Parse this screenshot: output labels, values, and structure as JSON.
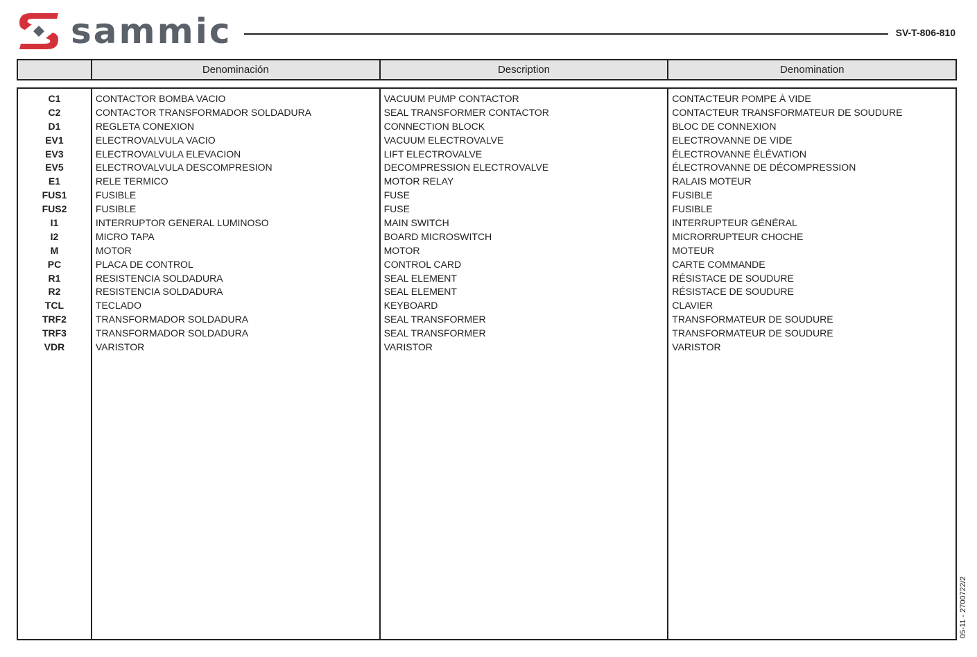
{
  "header": {
    "brand": "sammic",
    "doc_code": "SV-T-806-810",
    "brand_colors": {
      "red": "#d5313a",
      "gray": "#5a6169"
    }
  },
  "table": {
    "columns": [
      "",
      "Denominación",
      "Description",
      "Denomination"
    ],
    "rows": [
      [
        "C1",
        "CONTACTOR BOMBA VACIO",
        "VACUUM PUMP CONTACTOR",
        "CONTACTEUR POMPE À VIDE"
      ],
      [
        "C2",
        "CONTACTOR TRANSFORMADOR SOLDADURA",
        "SEAL TRANSFORMER CONTACTOR",
        "CONTACTEUR TRANSFORMATEUR DE SOUDURE"
      ],
      [
        "D1",
        "REGLETA CONEXION",
        "CONNECTION BLOCK",
        "BLOC DE CONNEXION"
      ],
      [
        "EV1",
        "ELECTROVALVULA VACIO",
        "VACUUM ELECTROVALVE",
        "ELECTROVANNE DE VIDE"
      ],
      [
        "EV3",
        "ELECTROVALVULA ELEVACION",
        "LIFT ELECTROVALVE",
        "ÉLECTROVANNE ÉLÉVATION"
      ],
      [
        "EV5",
        "ELECTROVALVULA DESCOMPRESION",
        "DECOMPRESSION ELECTROVALVE",
        "ÉLECTROVANNE DE DÉCOMPRESSION"
      ],
      [
        "E1",
        "RELE TERMICO",
        "MOTOR RELAY",
        "RALAIS MOTEUR"
      ],
      [
        "FUS1",
        "FUSIBLE",
        "FUSE",
        "FUSIBLE"
      ],
      [
        "FUS2",
        "FUSIBLE",
        "FUSE",
        "FUSIBLE"
      ],
      [
        "I1",
        "INTERRUPTOR GENERAL LUMINOSO",
        "MAIN SWITCH",
        "INTERRUPTEUR GÉNÉRAL"
      ],
      [
        "I2",
        "MICRO TAPA",
        "BOARD MICROSWITCH",
        "MICRORRUPTEUR CHOCHE"
      ],
      [
        "M",
        "MOTOR",
        "MOTOR",
        "MOTEUR"
      ],
      [
        "PC",
        "PLACA DE CONTROL",
        "CONTROL CARD",
        "CARTE COMMANDE"
      ],
      [
        "R1",
        "RESISTENCIA SOLDADURA",
        "SEAL ELEMENT",
        "RÉSISTACE DE SOUDURE"
      ],
      [
        "R2",
        "RESISTENCIA SOLDADURA",
        "SEAL ELEMENT",
        "RÉSISTACE DE SOUDURE"
      ],
      [
        "TCL",
        "TECLADO",
        "KEYBOARD",
        "CLAVIER"
      ],
      [
        "TRF2",
        "TRANSFORMADOR SOLDADURA",
        "SEAL TRANSFORMER",
        "TRANSFORMATEUR DE SOUDURE"
      ],
      [
        "TRF3",
        "TRANSFORMADOR SOLDADURA",
        "SEAL TRANSFORMER",
        "TRANSFORMATEUR DE SOUDURE"
      ],
      [
        "VDR",
        "VARISTOR",
        "VARISTOR",
        "VARISTOR"
      ]
    ]
  },
  "footer": {
    "ref": "05-11 - 2700722/2"
  }
}
